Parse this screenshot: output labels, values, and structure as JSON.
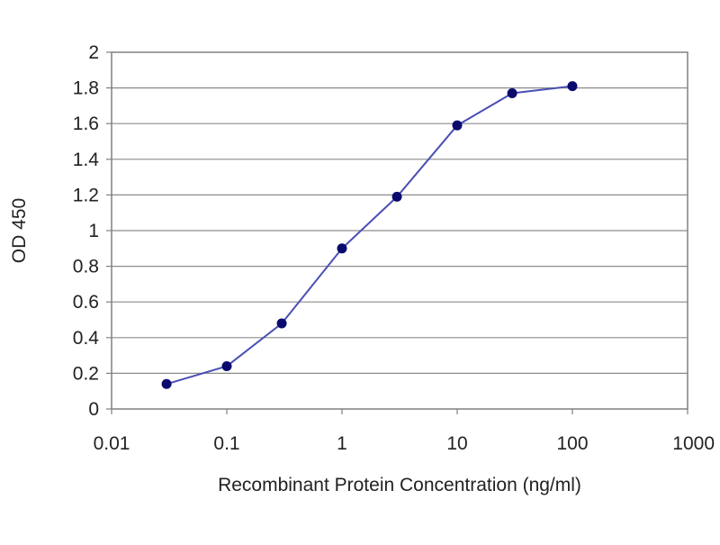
{
  "chart_data": {
    "type": "line",
    "title": "",
    "xlabel": "Recombinant Protein Concentration (ng/ml)",
    "ylabel": "OD 450",
    "x_scale": "log",
    "xlim": [
      0.01,
      1000
    ],
    "ylim": [
      0,
      2
    ],
    "x_ticks": [
      "0.01",
      "0.1",
      "1",
      "10",
      "100",
      "1000"
    ],
    "y_ticks": [
      "0",
      "0.2",
      "0.4",
      "0.6",
      "0.8",
      "1",
      "1.2",
      "1.4",
      "1.6",
      "1.8",
      "2"
    ],
    "grid": "horizontal",
    "legend": "none",
    "series": [
      {
        "x": [
          0.03,
          0.1,
          0.3,
          1,
          3,
          10,
          30,
          100
        ],
        "y": [
          0.14,
          0.24,
          0.48,
          0.9,
          1.19,
          1.59,
          1.77,
          1.81
        ]
      }
    ],
    "colors": {
      "line": "#4a4fb4",
      "marker": "#0a0a6e",
      "grid": "#8c8c8c",
      "frame": "#808080"
    }
  }
}
